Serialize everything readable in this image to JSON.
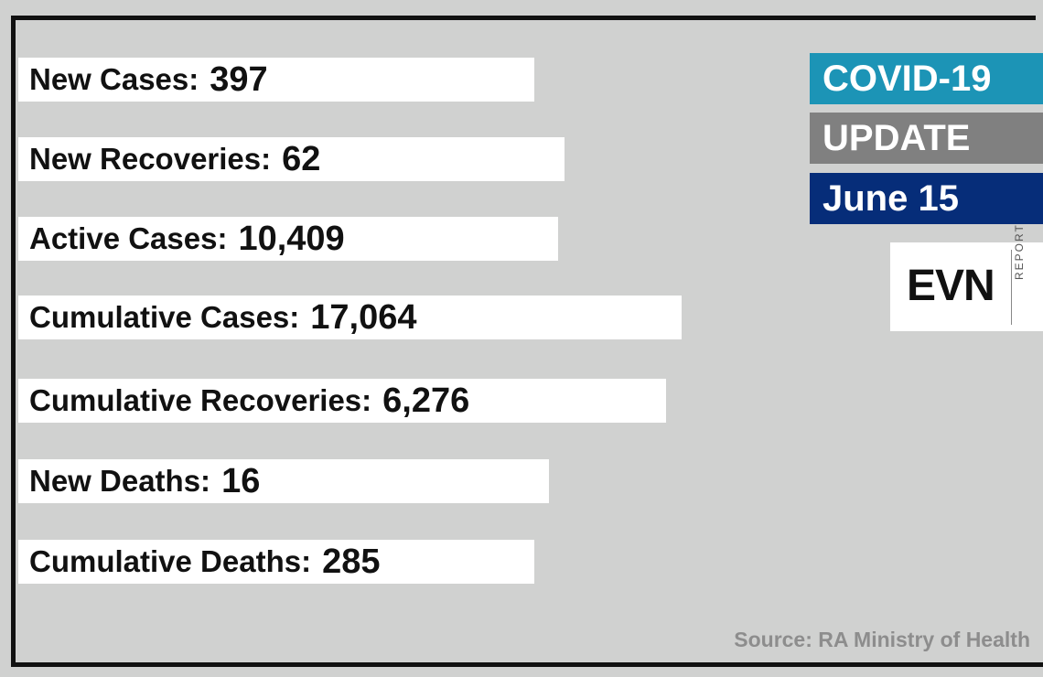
{
  "stats": [
    {
      "label": "New Cases:",
      "value": "397"
    },
    {
      "label": "New Recoveries:",
      "value": "62"
    },
    {
      "label": "Active Cases:",
      "value": "10,409"
    },
    {
      "label": "Cumulative Cases:",
      "value": "17,064"
    },
    {
      "label": "Cumulative Recoveries:",
      "value": "6,276"
    },
    {
      "label": "New Deaths:",
      "value": "16"
    },
    {
      "label": "Cumulative Deaths:",
      "value": "285"
    }
  ],
  "header": {
    "title": "COVID-19",
    "subtitle": "UPDATE",
    "date": "June 15"
  },
  "logo": {
    "main": "EVN",
    "sub": "REPORT"
  },
  "source": "Source: RA Ministry of Health",
  "colors": {
    "background": "#d0d1d0",
    "title_bg": "#1c94b6",
    "subtitle_bg": "#808080",
    "date_bg": "#062d79"
  }
}
